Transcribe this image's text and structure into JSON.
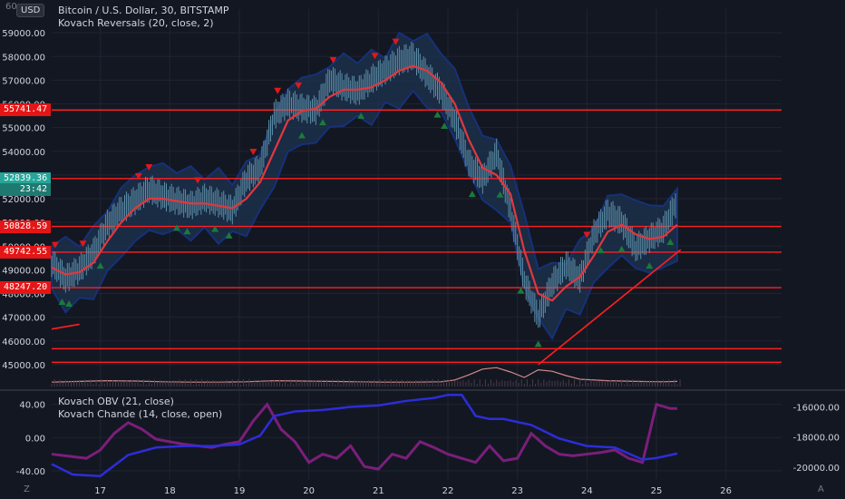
{
  "header": {
    "currency_button": "USD",
    "title": "Bitcoin / U.S. Dollar, 30, BITSTAMP",
    "indicator_main": "Kovach Reversals (20, close, 2)",
    "indicator_sub1": "Kovach OBV (21, close)",
    "indicator_sub2": "Kovach Chande (14, close, open)"
  },
  "corner": {
    "left_label": "Z",
    "right_label": "A",
    "top_left_digits": "60"
  },
  "colors": {
    "background": "#131722",
    "grid": "#1f2433",
    "level_line": "#ff1f1f",
    "band_fill": "#1e3350",
    "band_edge": "#15317a",
    "ma_line": "#e0383e",
    "candle": "#5d8fa8",
    "up_marker": "#1b7a3a",
    "down_marker": "#e01818",
    "obv_line": "#2d2dd8",
    "chande_line": "#7a1f7a",
    "price_badge": "#e51515",
    "last_price_badge": "#26a69a",
    "volume": "#d08a8a"
  },
  "chart_data": [
    {
      "type": "line",
      "title": "Bitcoin / U.S. Dollar, 30, BITSTAMP",
      "ylim": [
        44000,
        60000
      ],
      "y_ticks": [
        "45000.00",
        "46000.00",
        "47000.00",
        "48000.00",
        "49000.00",
        "50000.00",
        "51000.00",
        "52000.00",
        "53000.00",
        "54000.00",
        "55000.00",
        "56000.00",
        "57000.00",
        "58000.00",
        "59000.00"
      ],
      "x_ticks": [
        "17",
        "18",
        "19",
        "20",
        "21",
        "22",
        "23",
        "24",
        "25",
        "26"
      ],
      "xlim": [
        16.3,
        26.8
      ],
      "price_badges": [
        {
          "label": "55741.47",
          "value": 55741.47
        },
        {
          "label": "52839.36",
          "value": 52839.36
        },
        {
          "label": "23:42",
          "value": 52390
        },
        {
          "label": "50828.59",
          "value": 50828.59
        },
        {
          "label": "49742.55",
          "value": 49742.55
        },
        {
          "label": "48247.20",
          "value": 48247.2
        }
      ],
      "horizontal_levels": [
        55741.47,
        52850,
        50828.59,
        49742.55,
        48247.2,
        45670,
        45100
      ],
      "series": [
        {
          "key": "close",
          "x": [
            16.3,
            16.5,
            16.7,
            16.9,
            17.1,
            17.3,
            17.5,
            17.7,
            17.9,
            18.1,
            18.3,
            18.5,
            18.7,
            18.9,
            19.1,
            19.3,
            19.5,
            19.7,
            19.9,
            20.1,
            20.3,
            20.5,
            20.7,
            20.9,
            21.1,
            21.3,
            21.5,
            21.7,
            21.9,
            22.1,
            22.3,
            22.5,
            22.7,
            22.9,
            23.1,
            23.3,
            23.5,
            23.7,
            23.9,
            24.1,
            24.3,
            24.5,
            24.7,
            24.9,
            25.1,
            25.3
          ],
          "values": [
            49300,
            48600,
            49000,
            49700,
            50900,
            51500,
            51900,
            52400,
            52100,
            51900,
            51700,
            52000,
            51800,
            51500,
            52800,
            53300,
            55500,
            56000,
            55800,
            55700,
            57000,
            56700,
            56500,
            57000,
            57400,
            57800,
            58000,
            57200,
            56500,
            55300,
            53500,
            52800,
            53900,
            51500,
            48500,
            47000,
            48400,
            49200,
            48600,
            50500,
            51400,
            51000,
            49900,
            50300,
            50700,
            51900
          ]
        },
        {
          "key": "moving_average",
          "x": [
            16.3,
            16.5,
            16.7,
            16.9,
            17.1,
            17.3,
            17.5,
            17.7,
            17.9,
            18.1,
            18.3,
            18.5,
            18.7,
            18.9,
            19.1,
            19.3,
            19.5,
            19.7,
            19.9,
            20.1,
            20.3,
            20.5,
            20.7,
            20.9,
            21.1,
            21.3,
            21.5,
            21.7,
            21.9,
            22.1,
            22.3,
            22.5,
            22.7,
            22.9,
            23.1,
            23.3,
            23.5,
            23.7,
            23.9,
            24.1,
            24.3,
            24.5,
            24.7,
            24.9,
            25.1,
            25.3
          ],
          "values": [
            49100,
            48800,
            48900,
            49300,
            50200,
            51000,
            51600,
            52000,
            52000,
            51900,
            51800,
            51800,
            51700,
            51600,
            52000,
            52700,
            54000,
            55300,
            55700,
            55800,
            56300,
            56600,
            56600,
            56700,
            57000,
            57400,
            57600,
            57400,
            56900,
            56000,
            54500,
            53300,
            53000,
            52200,
            49800,
            48000,
            47700,
            48300,
            48700,
            49600,
            50600,
            50900,
            50500,
            50300,
            50400,
            50900
          ]
        }
      ],
      "reversal_markers": {
        "down": [
          16.35,
          16.75,
          17.55,
          17.7,
          18.4,
          19.2,
          19.55,
          19.85,
          20.35,
          20.95,
          21.25,
          24.0
        ],
        "up": [
          16.45,
          16.55,
          17.0,
          18.1,
          18.25,
          18.65,
          18.85,
          19.9,
          20.2,
          20.75,
          21.85,
          21.95,
          22.35,
          22.75,
          23.05,
          23.3,
          24.2,
          24.5,
          24.9,
          25.2
        ]
      },
      "volume": {
        "x": [
          16.3,
          16.7,
          17.1,
          17.5,
          17.9,
          18.3,
          18.7,
          19.1,
          19.5,
          19.9,
          20.3,
          20.7,
          21.1,
          21.5,
          21.9,
          22.1,
          22.3,
          22.5,
          22.7,
          22.9,
          23.1,
          23.3,
          23.5,
          23.7,
          23.9,
          24.3,
          24.7,
          25.1,
          25.3
        ],
        "values": [
          1.2,
          1.4,
          1.6,
          1.5,
          1.3,
          1.2,
          1.2,
          1.3,
          1.6,
          1.5,
          1.4,
          1.3,
          1.2,
          1.2,
          1.3,
          1.8,
          3.2,
          4.8,
          5.2,
          4.0,
          2.5,
          4.6,
          4.2,
          3.0,
          2.0,
          1.6,
          1.4,
          1.3,
          1.4
        ]
      }
    },
    {
      "type": "line",
      "title": "Kovach OBV (21, close) / Kovach Chande (14, close, open)",
      "left_ticks": [
        "40.00",
        "0.00",
        "-40.00"
      ],
      "right_ticks": [
        "-16000.00",
        "-18000.00",
        "-20000.00"
      ],
      "series": [
        {
          "key": "obv",
          "axis": "right",
          "x": [
            16.3,
            16.6,
            17.0,
            17.4,
            17.8,
            18.2,
            18.6,
            19.0,
            19.3,
            19.5,
            19.8,
            20.2,
            20.6,
            21.0,
            21.4,
            21.8,
            22.0,
            22.2,
            22.4,
            22.6,
            22.8,
            23.0,
            23.2,
            23.6,
            24.0,
            24.4,
            24.8,
            25.0,
            25.3
          ],
          "values": [
            -19800,
            -20500,
            -20600,
            -19200,
            -18700,
            -18600,
            -18600,
            -18500,
            -17900,
            -16600,
            -16300,
            -16200,
            -16000,
            -15900,
            -15600,
            -15400,
            -15200,
            -15200,
            -16600,
            -16800,
            -16800,
            -17000,
            -17200,
            -18100,
            -18600,
            -18700,
            -19500,
            -19400,
            -19100
          ]
        },
        {
          "key": "chande",
          "axis": "left",
          "x": [
            16.3,
            16.5,
            16.8,
            17.0,
            17.2,
            17.4,
            17.6,
            17.8,
            18.0,
            18.2,
            18.4,
            18.6,
            18.8,
            19.0,
            19.2,
            19.4,
            19.6,
            19.8,
            20.0,
            20.2,
            20.4,
            20.6,
            20.8,
            21.0,
            21.2,
            21.4,
            21.6,
            21.8,
            22.0,
            22.2,
            22.4,
            22.6,
            22.8,
            23.0,
            23.2,
            23.4,
            23.6,
            23.8,
            24.0,
            24.2,
            24.4,
            24.6,
            24.8,
            25.0,
            25.2,
            25.3
          ],
          "values": [
            -20,
            -22,
            -25,
            -15,
            5,
            18,
            10,
            -2,
            -5,
            -8,
            -10,
            -12,
            -8,
            -5,
            20,
            40,
            10,
            -5,
            -30,
            -20,
            -25,
            -10,
            -35,
            -38,
            -20,
            -25,
            -5,
            -12,
            -20,
            -25,
            -30,
            -10,
            -28,
            -25,
            5,
            -10,
            -20,
            -22,
            -20,
            -18,
            -15,
            -25,
            -30,
            40,
            35,
            35
          ]
        }
      ]
    }
  ]
}
